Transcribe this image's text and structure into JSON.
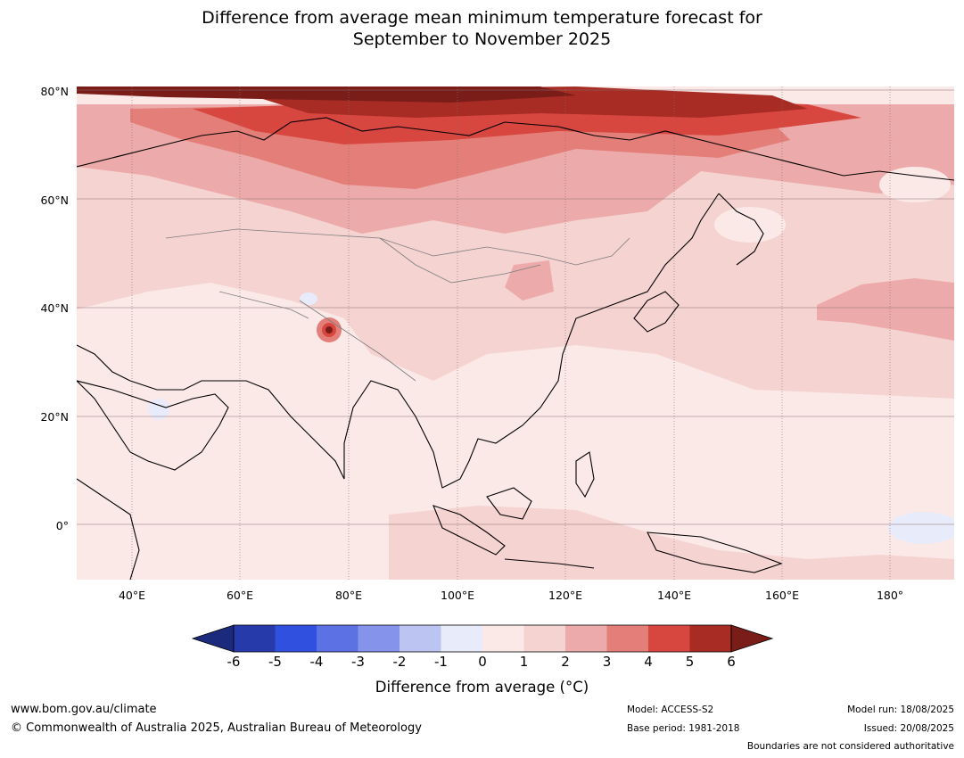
{
  "title": {
    "line1": "Difference from average mean minimum temperature forecast for",
    "line2": "September to November 2025"
  },
  "map": {
    "lat_labels": [
      "80°N",
      "60°N",
      "40°N",
      "20°N",
      "0°"
    ],
    "lon_labels": [
      "40°E",
      "60°E",
      "80°E",
      "100°E",
      "120°E",
      "140°E",
      "160°E",
      "180°"
    ],
    "background_color": "#fbe9e8"
  },
  "colorbar": {
    "tick_labels": [
      "-6",
      "-5",
      "-4",
      "-3",
      "-2",
      "-1",
      "0",
      "1",
      "2",
      "3",
      "4",
      "5",
      "6"
    ],
    "colors": [
      "#1c2a7e",
      "#263ba9",
      "#3050df",
      "#5c72e4",
      "#8594ea",
      "#bcc4f2",
      "#e8ebfa",
      "#fbe9e8",
      "#f5d3d1",
      "#ecabaa",
      "#e47e78",
      "#d7463f",
      "#a82b24",
      "#7a1d19"
    ],
    "title": "Difference from average (°C)"
  },
  "footer": {
    "website": "www.bom.gov.au/climate",
    "copyright": "© Commonwealth of Australia 2025, Australian Bureau of Meteorology",
    "model": "Model: ACCESS-S2",
    "base_period": "Base period: 1981-2018",
    "model_run": "Model run: 18/08/2025",
    "issued": "Issued: 20/08/2025",
    "disclaimer": "Boundaries are not considered authoritative"
  }
}
